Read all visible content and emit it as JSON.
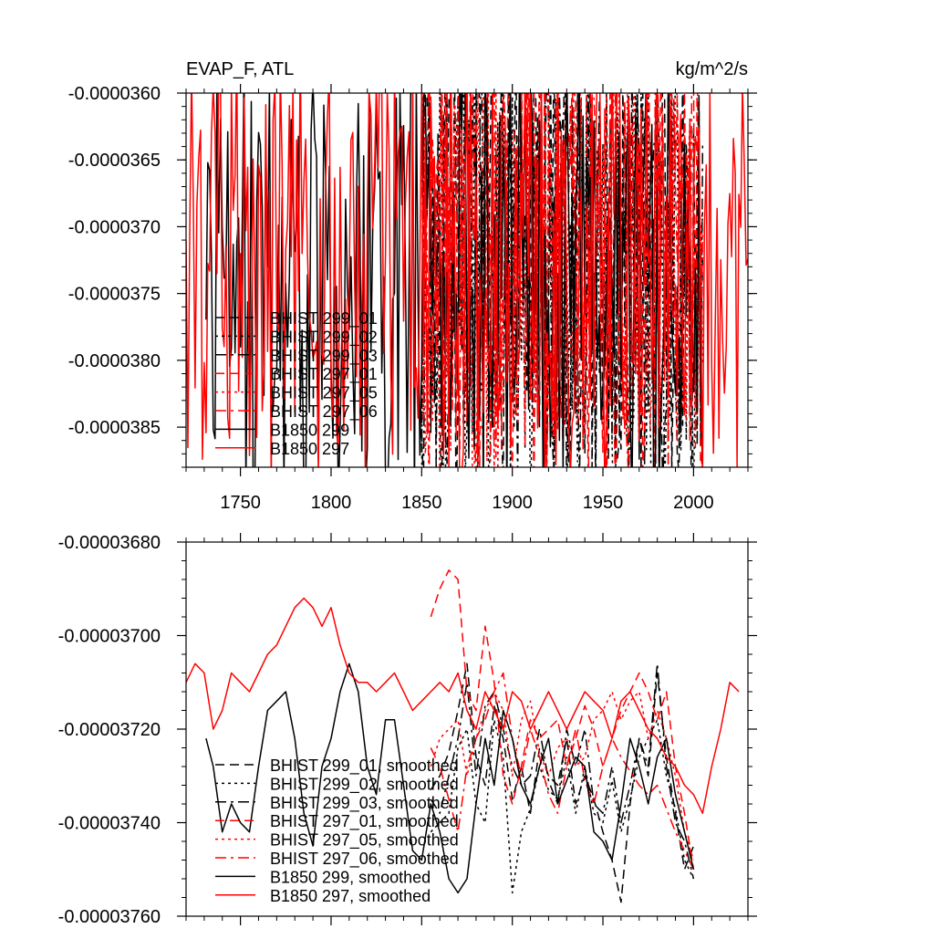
{
  "chart_data": [
    {
      "type": "line",
      "title": "EVAP_F, ATL",
      "units": "kg/m^2/s",
      "xlabel": "",
      "ylabel": "",
      "xlim": [
        1720,
        2030
      ],
      "ylim": [
        -3.88e-05,
        -3.6e-05
      ],
      "xticks": [
        1750,
        1800,
        1850,
        1900,
        1950,
        2000
      ],
      "xtick_labels": [
        "1750",
        "1800",
        "1850",
        "1900",
        "1950",
        "2000"
      ],
      "yticks": [
        -3.6e-05,
        -3.65e-05,
        -3.7e-05,
        -3.75e-05,
        -3.8e-05,
        -3.85e-05
      ],
      "ytick_labels": [
        "-0.0000360",
        "-0.0000365",
        "-0.0000370",
        "-0.0000375",
        "-0.0000380",
        "-0.0000385"
      ],
      "legend_position": "bottom-left",
      "series": [
        {
          "name": "BHIST 299_01",
          "color": "#000000",
          "dash": "dash",
          "x_start": 1850,
          "x_end": 2005,
          "mean": -3.73e-05,
          "amp": 1.8e-06,
          "seed": 11,
          "extremes": [
            [
              1872,
              -3.62e-05
            ]
          ]
        },
        {
          "name": "BHIST 299_02",
          "color": "#000000",
          "dash": "dot",
          "x_start": 1850,
          "x_end": 2005,
          "mean": -3.74e-05,
          "amp": 1.8e-06,
          "seed": 12,
          "extremes": [
            [
              1948,
              -3.81e-05
            ],
            [
              1891,
              -3.82e-05
            ]
          ]
        },
        {
          "name": "BHIST 299_03",
          "color": "#000000",
          "dash": "dashdot",
          "x_start": 1850,
          "x_end": 2005,
          "mean": -3.73e-05,
          "amp": 1.8e-06,
          "seed": 13,
          "extremes": [
            [
              1978,
              -3.64e-05
            ],
            [
              1990,
              -3.81e-05
            ]
          ]
        },
        {
          "name": "BHIST 297_01",
          "color": "#ff0000",
          "dash": "dash",
          "x_start": 1850,
          "x_end": 2005,
          "mean": -3.72e-05,
          "amp": 1.8e-06,
          "seed": 21,
          "extremes": [
            [
              1884,
              -3.81e-05
            ],
            [
              1928,
              -3.65e-05
            ]
          ]
        },
        {
          "name": "BHIST 297_05",
          "color": "#ff0000",
          "dash": "dot",
          "x_start": 1850,
          "x_end": 2005,
          "mean": -3.71e-05,
          "amp": 1.8e-06,
          "seed": 22,
          "extremes": [
            [
              1938,
              -3.64e-05
            ],
            [
              1955,
              -3.64e-05
            ]
          ]
        },
        {
          "name": "BHIST 297_06",
          "color": "#ff0000",
          "dash": "dashdot",
          "x_start": 1850,
          "x_end": 2005,
          "mean": -3.72e-05,
          "amp": 1.8e-06,
          "seed": 23,
          "extremes": [
            [
              2004,
              -3.84e-05
            ],
            [
              1868,
              -3.63e-05
            ]
          ]
        },
        {
          "name": "B1850 299",
          "color": "#000000",
          "dash": "solid",
          "x_start": 1731,
          "x_end": 2005,
          "mean": -3.74e-05,
          "amp": 1.6e-06,
          "seed": 31,
          "extremes": [
            [
              1750,
              -3.79e-05
            ],
            [
              1776,
              -3.79e-05
            ],
            [
              1938,
              -3.8e-05
            ]
          ]
        },
        {
          "name": "B1850 297",
          "color": "#ff0000",
          "dash": "solid",
          "x_start": 1720,
          "x_end": 2030,
          "mean": -3.72e-05,
          "amp": 1.6e-06,
          "seed": 32,
          "extremes": [
            [
              1768,
              -3.62e-05
            ],
            [
              1734,
              -3.63e-05
            ],
            [
              1888,
              -3.81e-05
            ]
          ]
        }
      ]
    },
    {
      "type": "line",
      "title": "",
      "xlabel": "",
      "ylabel": "",
      "xlim": [
        1720,
        2030
      ],
      "ylim": [
        -3.76e-05,
        -3.68e-05
      ],
      "xticks": [
        1750,
        1800,
        1850,
        1900,
        1950,
        2000
      ],
      "yticks": [
        -3.68e-05,
        -3.7e-05,
        -3.72e-05,
        -3.74e-05,
        -3.76e-05
      ],
      "ytick_labels": [
        "-0.00003680",
        "-0.00003700",
        "-0.00003720",
        "-0.00003740",
        "-0.00003760"
      ],
      "legend_position": "bottom-left",
      "series": [
        {
          "name": "BHIST 299_01, smoothed",
          "color": "#000000",
          "dash": "dash",
          "x": [
            1855,
            1860,
            1865,
            1870,
            1875,
            1880,
            1885,
            1890,
            1895,
            1900,
            1905,
            1910,
            1915,
            1920,
            1925,
            1930,
            1935,
            1940,
            1945,
            1950,
            1955,
            1960,
            1965,
            1970,
            1975,
            1980,
            1985,
            1990,
            1995,
            2000
          ],
          "y": [
            -3.733e-05,
            -3.73e-05,
            -3.725e-05,
            -3.716e-05,
            -3.706e-05,
            -3.726e-05,
            -3.732e-05,
            -3.715e-05,
            -3.722e-05,
            -3.735e-05,
            -3.728e-05,
            -3.738e-05,
            -3.724e-05,
            -3.73e-05,
            -3.732e-05,
            -3.722e-05,
            -3.736e-05,
            -3.73e-05,
            -3.735e-05,
            -3.742e-05,
            -3.748e-05,
            -3.757e-05,
            -3.736e-05,
            -3.722e-05,
            -3.73e-05,
            -3.708e-05,
            -3.726e-05,
            -3.738e-05,
            -3.75e-05,
            -3.745e-05
          ]
        },
        {
          "name": "BHIST 299_02, smoothed",
          "color": "#000000",
          "dash": "dot",
          "x": [
            1855,
            1860,
            1865,
            1870,
            1875,
            1880,
            1885,
            1890,
            1895,
            1900,
            1905,
            1910,
            1915,
            1920,
            1925,
            1930,
            1935,
            1940,
            1945,
            1950,
            1955,
            1960,
            1965,
            1970,
            1975,
            1980,
            1985,
            1990,
            1995,
            2000
          ],
          "y": [
            -3.742e-05,
            -3.74e-05,
            -3.738e-05,
            -3.724e-05,
            -3.72e-05,
            -3.736e-05,
            -3.74e-05,
            -3.718e-05,
            -3.726e-05,
            -3.755e-05,
            -3.742e-05,
            -3.737e-05,
            -3.728e-05,
            -3.733e-05,
            -3.735e-05,
            -3.726e-05,
            -3.738e-05,
            -3.728e-05,
            -3.738e-05,
            -3.74e-05,
            -3.731e-05,
            -3.742e-05,
            -3.735e-05,
            -3.726e-05,
            -3.722e-05,
            -3.718e-05,
            -3.73e-05,
            -3.737e-05,
            -3.748e-05,
            -3.752e-05
          ]
        },
        {
          "name": "BHIST 299_03, smoothed",
          "color": "#000000",
          "dash": "dashdot",
          "x": [
            1855,
            1860,
            1865,
            1870,
            1875,
            1880,
            1885,
            1890,
            1895,
            1900,
            1905,
            1910,
            1915,
            1920,
            1925,
            1930,
            1935,
            1940,
            1945,
            1950,
            1955,
            1960,
            1965,
            1970,
            1975,
            1980,
            1985,
            1990,
            1995,
            2000
          ],
          "y": [
            -3.735e-05,
            -3.738e-05,
            -3.73e-05,
            -3.722e-05,
            -3.71e-05,
            -3.73e-05,
            -3.715e-05,
            -3.712e-05,
            -3.72e-05,
            -3.728e-05,
            -3.732e-05,
            -3.73e-05,
            -3.72e-05,
            -3.731e-05,
            -3.736e-05,
            -3.72e-05,
            -3.728e-05,
            -3.72e-05,
            -3.736e-05,
            -3.738e-05,
            -3.728e-05,
            -3.74e-05,
            -3.732e-05,
            -3.722e-05,
            -3.728e-05,
            -3.706e-05,
            -3.728e-05,
            -3.74e-05,
            -3.744e-05,
            -3.752e-05
          ]
        },
        {
          "name": "BHIST 297_01, smoothed",
          "color": "#ff0000",
          "dash": "dash",
          "x": [
            1855,
            1860,
            1865,
            1870,
            1875,
            1880,
            1885,
            1890,
            1895,
            1900,
            1905,
            1910,
            1915,
            1920,
            1925,
            1930,
            1935,
            1940,
            1945,
            1950,
            1955,
            1960,
            1965,
            1970,
            1975,
            1980,
            1985,
            1990,
            1995,
            2000
          ],
          "y": [
            -3.696e-05,
            -3.69e-05,
            -3.686e-05,
            -3.688e-05,
            -3.712e-05,
            -3.716e-05,
            -3.698e-05,
            -3.71e-05,
            -3.73e-05,
            -3.736e-05,
            -3.728e-05,
            -3.718e-05,
            -3.722e-05,
            -3.72e-05,
            -3.718e-05,
            -3.728e-05,
            -3.722e-05,
            -3.715e-05,
            -3.72e-05,
            -3.728e-05,
            -3.722e-05,
            -3.716e-05,
            -3.712e-05,
            -3.708e-05,
            -3.712e-05,
            -3.718e-05,
            -3.712e-05,
            -3.728e-05,
            -3.738e-05,
            -3.75e-05
          ]
        },
        {
          "name": "BHIST 297_05, smoothed",
          "color": "#ff0000",
          "dash": "dot",
          "x": [
            1855,
            1860,
            1865,
            1870,
            1875,
            1880,
            1885,
            1890,
            1895,
            1900,
            1905,
            1910,
            1915,
            1920,
            1925,
            1930,
            1935,
            1940,
            1945,
            1950,
            1955,
            1960,
            1965,
            1970,
            1975,
            1980,
            1985,
            1990,
            1995,
            2000
          ],
          "y": [
            -3.728e-05,
            -3.722e-05,
            -3.72e-05,
            -3.718e-05,
            -3.73e-05,
            -3.722e-05,
            -3.716e-05,
            -3.712e-05,
            -3.716e-05,
            -3.73e-05,
            -3.718e-05,
            -3.714e-05,
            -3.725e-05,
            -3.73e-05,
            -3.724e-05,
            -3.722e-05,
            -3.728e-05,
            -3.726e-05,
            -3.718e-05,
            -3.716e-05,
            -3.712e-05,
            -3.718e-05,
            -3.714e-05,
            -3.712e-05,
            -3.722e-05,
            -3.716e-05,
            -3.722e-05,
            -3.73e-05,
            -3.742e-05,
            -3.748e-05
          ]
        },
        {
          "name": "BHIST 297_06, smoothed",
          "color": "#ff0000",
          "dash": "dashdot",
          "x": [
            1855,
            1860,
            1865,
            1870,
            1875,
            1880,
            1885,
            1890,
            1895,
            1900,
            1905,
            1910,
            1915,
            1920,
            1925,
            1930,
            1935,
            1940,
            1945,
            1950,
            1955,
            1960,
            1965,
            1970,
            1975,
            1980,
            1985,
            1990,
            1995,
            2000
          ],
          "y": [
            -3.724e-05,
            -3.728e-05,
            -3.735e-05,
            -3.742e-05,
            -3.728e-05,
            -3.722e-05,
            -3.718e-05,
            -3.712e-05,
            -3.708e-05,
            -3.722e-05,
            -3.73e-05,
            -3.72e-05,
            -3.726e-05,
            -3.734e-05,
            -3.738e-05,
            -3.728e-05,
            -3.72e-05,
            -3.731e-05,
            -3.736e-05,
            -3.728e-05,
            -3.722e-05,
            -3.726e-05,
            -3.729e-05,
            -3.732e-05,
            -3.734e-05,
            -3.732e-05,
            -3.737e-05,
            -3.742e-05,
            -3.746e-05,
            -3.75e-05
          ]
        },
        {
          "name": "B1850 299, smoothed",
          "color": "#000000",
          "dash": "solid",
          "x": [
            1731,
            1735,
            1740,
            1745,
            1750,
            1755,
            1760,
            1765,
            1770,
            1775,
            1780,
            1785,
            1790,
            1795,
            1800,
            1805,
            1810,
            1815,
            1820,
            1825,
            1830,
            1835,
            1840,
            1845,
            1850,
            1855,
            1860,
            1865,
            1870,
            1875,
            1880,
            1885,
            1890,
            1895,
            1900,
            1905,
            1910,
            1915,
            1920,
            1925,
            1930,
            1935,
            1940,
            1945,
            1950,
            1955,
            1960,
            1965,
            1970,
            1975,
            1980,
            1985,
            1990,
            1995,
            2000
          ],
          "y": [
            -3.722e-05,
            -3.728e-05,
            -3.742e-05,
            -3.736e-05,
            -3.74e-05,
            -3.742e-05,
            -3.728e-05,
            -3.716e-05,
            -3.714e-05,
            -3.712e-05,
            -3.722e-05,
            -3.738e-05,
            -3.745e-05,
            -3.728e-05,
            -3.722e-05,
            -3.712e-05,
            -3.706e-05,
            -3.712e-05,
            -3.728e-05,
            -3.734e-05,
            -3.718e-05,
            -3.718e-05,
            -3.732e-05,
            -3.746e-05,
            -3.748e-05,
            -3.736e-05,
            -3.742e-05,
            -3.752e-05,
            -3.755e-05,
            -3.752e-05,
            -3.736e-05,
            -3.722e-05,
            -3.732e-05,
            -3.716e-05,
            -3.722e-05,
            -3.732e-05,
            -3.736e-05,
            -3.728e-05,
            -3.722e-05,
            -3.736e-05,
            -3.731e-05,
            -3.726e-05,
            -3.728e-05,
            -3.742e-05,
            -3.744e-05,
            -3.748e-05,
            -3.736e-05,
            -3.722e-05,
            -3.728e-05,
            -3.736e-05,
            -3.726e-05,
            -3.722e-05,
            -3.734e-05,
            -3.742e-05,
            -3.75e-05
          ]
        },
        {
          "name": "B1850 297, smoothed",
          "color": "#ff0000",
          "dash": "solid",
          "x": [
            1720,
            1725,
            1730,
            1735,
            1740,
            1745,
            1750,
            1755,
            1760,
            1765,
            1770,
            1775,
            1780,
            1785,
            1790,
            1795,
            1800,
            1805,
            1810,
            1815,
            1820,
            1825,
            1830,
            1835,
            1840,
            1845,
            1850,
            1855,
            1860,
            1865,
            1870,
            1875,
            1880,
            1885,
            1890,
            1895,
            1900,
            1905,
            1910,
            1915,
            1920,
            1925,
            1930,
            1935,
            1940,
            1945,
            1950,
            1955,
            1960,
            1965,
            1970,
            1975,
            1980,
            1985,
            1990,
            1995,
            2000,
            2005,
            2010,
            2015,
            2020,
            2025
          ],
          "y": [
            -3.71e-05,
            -3.706e-05,
            -3.708e-05,
            -3.72e-05,
            -3.716e-05,
            -3.708e-05,
            -3.71e-05,
            -3.712e-05,
            -3.708e-05,
            -3.704e-05,
            -3.702e-05,
            -3.698e-05,
            -3.694e-05,
            -3.692e-05,
            -3.694e-05,
            -3.698e-05,
            -3.694e-05,
            -3.702e-05,
            -3.708e-05,
            -3.71e-05,
            -3.71e-05,
            -3.712e-05,
            -3.71e-05,
            -3.708e-05,
            -3.712e-05,
            -3.716e-05,
            -3.714e-05,
            -3.712e-05,
            -3.71e-05,
            -3.712e-05,
            -3.708e-05,
            -3.716e-05,
            -3.72e-05,
            -3.712e-05,
            -3.716e-05,
            -3.72e-05,
            -3.712e-05,
            -3.714e-05,
            -3.72e-05,
            -3.716e-05,
            -3.712e-05,
            -3.716e-05,
            -3.72e-05,
            -3.716e-05,
            -3.712e-05,
            -3.714e-05,
            -3.716e-05,
            -3.722e-05,
            -3.714e-05,
            -3.712e-05,
            -3.716e-05,
            -3.72e-05,
            -3.722e-05,
            -3.726e-05,
            -3.728e-05,
            -3.732e-05,
            -3.734e-05,
            -3.738e-05,
            -3.728e-05,
            -3.72e-05,
            -3.71e-05,
            -3.712e-05
          ]
        }
      ]
    }
  ]
}
